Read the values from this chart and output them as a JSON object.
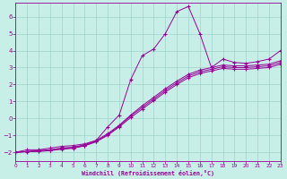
{
  "xlabel": "Windchill (Refroidissement éolien,°C)",
  "background_color": "#c8eee8",
  "grid_color": "#a0d4cc",
  "line_color": "#990099",
  "xlim": [
    0,
    23
  ],
  "ylim": [
    -2.5,
    6.8
  ],
  "xticks": [
    0,
    1,
    2,
    3,
    4,
    5,
    6,
    7,
    8,
    9,
    10,
    11,
    12,
    13,
    14,
    15,
    16,
    17,
    18,
    19,
    20,
    21,
    22,
    23
  ],
  "yticks": [
    -2,
    -1,
    0,
    1,
    2,
    3,
    4,
    5,
    6
  ],
  "series": [
    {
      "x": [
        0,
        1,
        2,
        3,
        4,
        5,
        6,
        7,
        8,
        9,
        10,
        11,
        12,
        13,
        14,
        15,
        16,
        17,
        18,
        19,
        20,
        21,
        22,
        23
      ],
      "y": [
        -2.0,
        -1.85,
        -1.85,
        -1.75,
        -1.65,
        -1.6,
        -1.5,
        -1.3,
        -0.5,
        0.2,
        2.3,
        3.7,
        4.1,
        5.0,
        6.3,
        6.6,
        5.0,
        3.0,
        3.5,
        3.3,
        3.25,
        3.35,
        3.5,
        4.0
      ]
    },
    {
      "x": [
        0,
        1,
        2,
        3,
        4,
        5,
        6,
        7,
        8,
        9,
        10,
        11,
        12,
        13,
        14,
        15,
        16,
        17,
        18,
        19,
        20,
        21,
        22,
        23
      ],
      "y": [
        -2.0,
        -1.95,
        -1.9,
        -1.85,
        -1.75,
        -1.7,
        -1.55,
        -1.3,
        -0.9,
        -0.4,
        0.2,
        0.75,
        1.25,
        1.75,
        2.2,
        2.6,
        2.85,
        3.0,
        3.15,
        3.1,
        3.1,
        3.15,
        3.2,
        3.4
      ]
    },
    {
      "x": [
        0,
        1,
        2,
        3,
        4,
        5,
        6,
        7,
        8,
        9,
        10,
        11,
        12,
        13,
        14,
        15,
        16,
        17,
        18,
        19,
        20,
        21,
        22,
        23
      ],
      "y": [
        -2.0,
        -1.95,
        -1.92,
        -1.87,
        -1.78,
        -1.72,
        -1.6,
        -1.35,
        -0.95,
        -0.45,
        0.15,
        0.65,
        1.15,
        1.65,
        2.1,
        2.5,
        2.75,
        2.9,
        3.05,
        3.0,
        3.0,
        3.05,
        3.1,
        3.3
      ]
    },
    {
      "x": [
        0,
        1,
        2,
        3,
        4,
        5,
        6,
        7,
        8,
        9,
        10,
        11,
        12,
        13,
        14,
        15,
        16,
        17,
        18,
        19,
        20,
        21,
        22,
        23
      ],
      "y": [
        -2.0,
        -1.97,
        -1.95,
        -1.9,
        -1.82,
        -1.76,
        -1.62,
        -1.38,
        -1.0,
        -0.5,
        0.05,
        0.55,
        1.05,
        1.55,
        2.0,
        2.4,
        2.65,
        2.8,
        2.95,
        2.9,
        2.9,
        2.95,
        3.0,
        3.2
      ]
    }
  ]
}
